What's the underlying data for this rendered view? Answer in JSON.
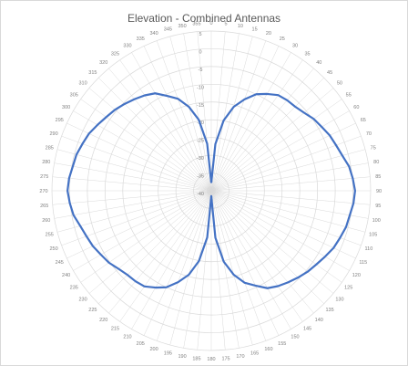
{
  "chart_data": {
    "type": "line",
    "title": "Elevation - Combined Antennas",
    "polar": true,
    "angle_direction": "clockwise",
    "angle_zero": "top",
    "angle_step_deg": 5,
    "angle_labels": [
      "0",
      "5",
      "10",
      "15",
      "20",
      "25",
      "30",
      "35",
      "40",
      "45",
      "50",
      "55",
      "60",
      "65",
      "70",
      "75",
      "80",
      "85",
      "90",
      "95",
      "100",
      "105",
      "110",
      "115",
      "120",
      "125",
      "130",
      "135",
      "140",
      "145",
      "150",
      "155",
      "160",
      "165",
      "170",
      "175",
      "180",
      "185",
      "190",
      "195",
      "200",
      "205",
      "210",
      "215",
      "220",
      "225",
      "230",
      "235",
      "240",
      "245",
      "250",
      "255",
      "260",
      "265",
      "270",
      "275",
      "280",
      "285",
      "290",
      "295",
      "300",
      "305",
      "310",
      "315",
      "320",
      "325",
      "330",
      "335",
      "340",
      "345",
      "350",
      "355"
    ],
    "radial_labels": [
      "5",
      "0",
      "-5",
      "-10",
      "-15",
      "-20",
      "-25",
      "-30",
      "-35",
      "-40"
    ],
    "rlim": [
      -40,
      5
    ],
    "grid": true,
    "series": [
      {
        "color": "#4472c4",
        "angles": [
          0,
          5,
          10,
          15,
          20,
          25,
          30,
          35,
          40,
          45,
          50,
          55,
          60,
          65,
          70,
          75,
          80,
          85,
          90,
          95,
          100,
          105,
          110,
          115,
          120,
          125,
          130,
          135,
          140,
          145,
          150,
          155,
          160,
          165,
          170,
          175,
          180,
          185,
          190,
          195,
          200,
          205,
          210,
          215,
          220,
          225,
          230,
          235,
          240,
          245,
          250,
          255,
          260,
          265,
          270,
          275,
          280,
          285,
          290,
          295,
          300,
          305,
          310,
          315,
          320,
          325,
          330,
          335,
          340,
          345,
          350,
          355
        ],
        "values": [
          -37.8,
          -26.8,
          -19.9,
          -15.5,
          -12.6,
          -10,
          -8.5,
          -7.1,
          -6.7,
          -6.5,
          -5.8,
          -4.7,
          -4.0,
          -3.1,
          -2.5,
          -1.7,
          -0.5,
          0.1,
          0.6,
          0.3,
          -0.3,
          -0.6,
          -1.3,
          -1.9,
          -2.9,
          -3.8,
          -4.5,
          -5.4,
          -6.3,
          -7.2,
          -8.3,
          -10.5,
          -12.4,
          -15.5,
          -19.7,
          -26.7,
          -38.5,
          -26.8,
          -19.9,
          -15.5,
          -12.6,
          -10,
          -8.5,
          -7.1,
          -6.7,
          -6.5,
          -5.8,
          -4.7,
          -4.0,
          -3.1,
          -2.5,
          -1.7,
          -0.5,
          0.1,
          0.6,
          0.3,
          -0.3,
          -0.6,
          -1.3,
          -1.9,
          -2.9,
          -3.8,
          -4.5,
          -5.4,
          -6.3,
          -7.2,
          -8.3,
          -10.5,
          -12.4,
          -15.5,
          -19.7,
          -26.7
        ]
      }
    ]
  },
  "colors": {
    "grid": "#d9d9d9",
    "line": "#4472c4",
    "text": "#7f7f7f"
  }
}
